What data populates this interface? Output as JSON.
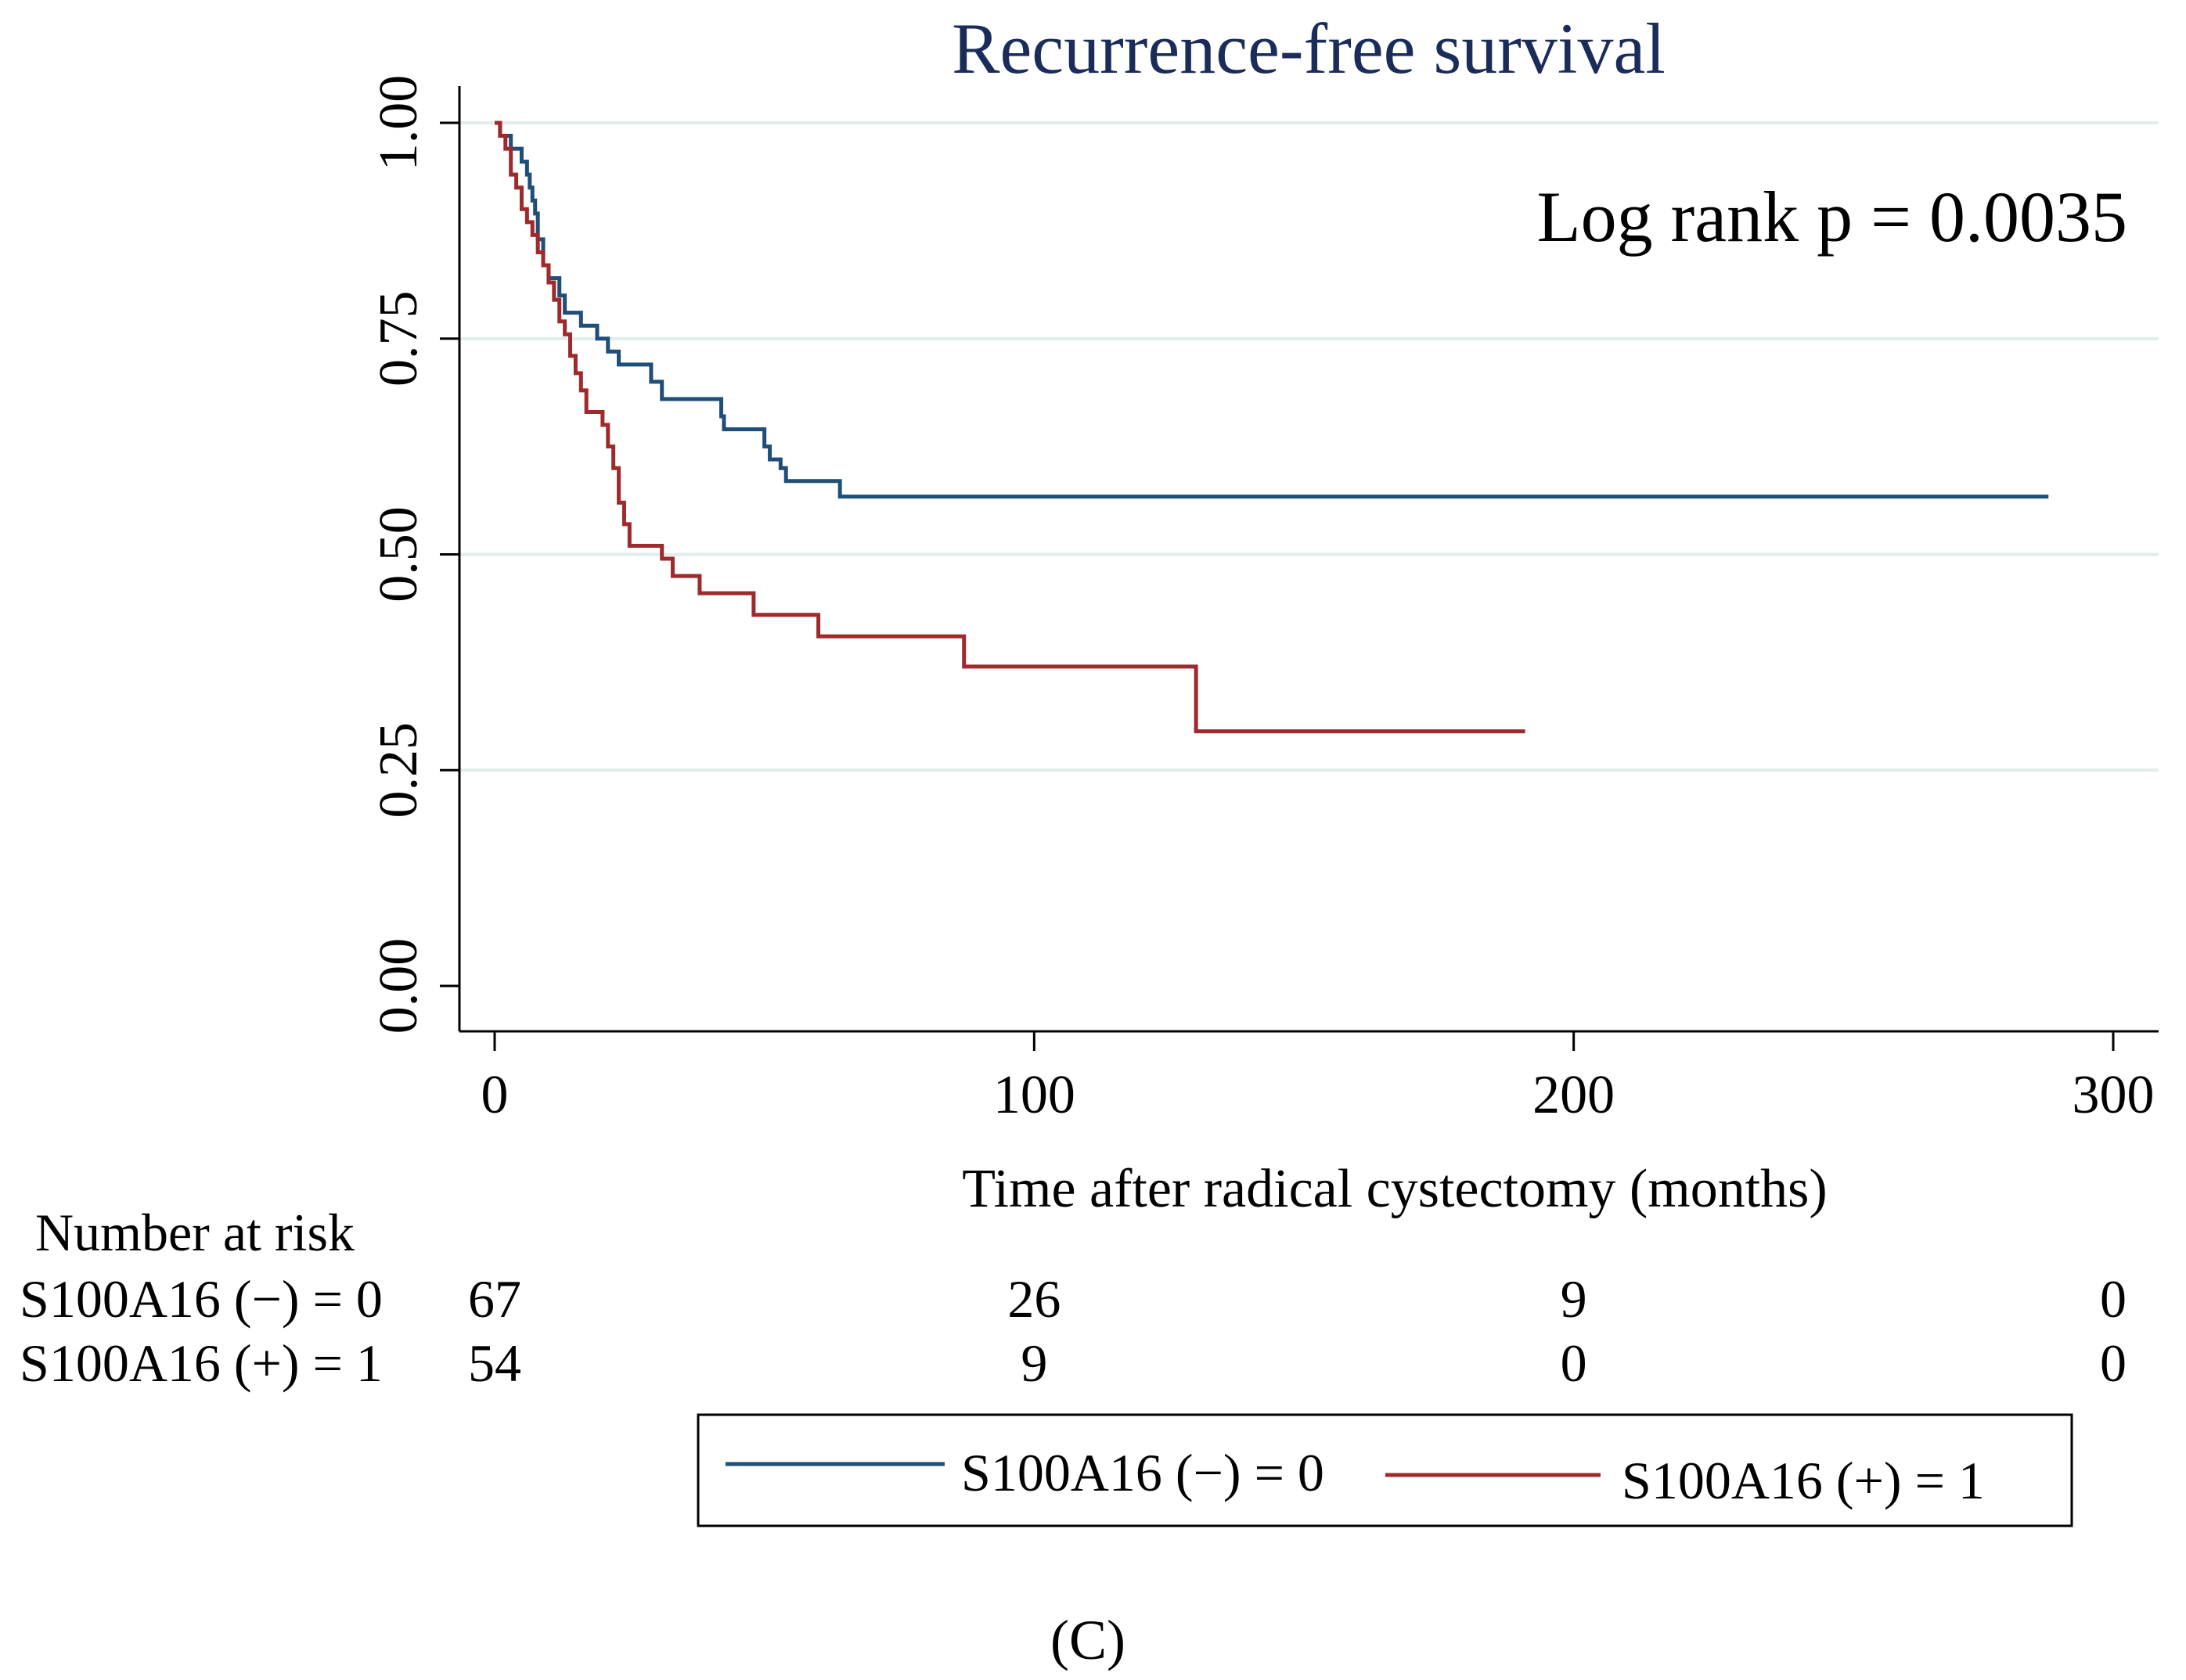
{
  "chart_data": {
    "type": "line",
    "step": true,
    "title": "Recurrence-free survival",
    "xlabel": "Time after radical cystectomy (months)",
    "ylabel": "",
    "xlim": [
      0,
      300
    ],
    "ylim": [
      0,
      1
    ],
    "xticks": [
      0,
      100,
      200,
      300
    ],
    "xtick_labels": [
      "0",
      "100",
      "200",
      "300"
    ],
    "yticks": [
      0,
      0.25,
      0.5,
      0.75,
      1.0
    ],
    "ytick_labels": [
      "0.00",
      "0.25",
      "0.50",
      "0.75",
      "1.00"
    ],
    "grid": true,
    "annotation": "Log rank p = 0.0035",
    "series": [
      {
        "name": "S100A16 (−) = 0",
        "color": "#1f4e79",
        "points": [
          [
            0,
            1.0
          ],
          [
            1,
            0.985
          ],
          [
            3,
            0.97
          ],
          [
            5,
            0.955
          ],
          [
            6,
            0.94
          ],
          [
            6.5,
            0.925
          ],
          [
            7,
            0.91
          ],
          [
            7.5,
            0.895
          ],
          [
            8,
            0.865
          ],
          [
            9,
            0.835
          ],
          [
            10,
            0.82
          ],
          [
            12,
            0.8
          ],
          [
            13,
            0.78
          ],
          [
            16,
            0.765
          ],
          [
            19,
            0.75
          ],
          [
            21,
            0.735
          ],
          [
            23,
            0.72
          ],
          [
            29,
            0.7
          ],
          [
            31,
            0.68
          ],
          [
            35,
            0.68
          ],
          [
            42,
            0.66
          ],
          [
            42.5,
            0.645
          ],
          [
            48,
            0.645
          ],
          [
            50,
            0.625
          ],
          [
            51,
            0.61
          ],
          [
            53,
            0.6
          ],
          [
            54,
            0.585
          ],
          [
            63,
            0.585
          ],
          [
            64,
            0.567
          ],
          [
            288,
            0.567
          ]
        ]
      },
      {
        "name": "S100A16 (+) = 1",
        "color": "#9e2a2b",
        "points": [
          [
            0,
            1.0
          ],
          [
            1,
            0.985
          ],
          [
            2,
            0.97
          ],
          [
            3,
            0.94
          ],
          [
            4,
            0.925
          ],
          [
            5,
            0.9
          ],
          [
            6,
            0.885
          ],
          [
            7,
            0.87
          ],
          [
            8,
            0.85
          ],
          [
            9,
            0.835
          ],
          [
            10,
            0.815
          ],
          [
            11,
            0.795
          ],
          [
            12,
            0.77
          ],
          [
            13,
            0.755
          ],
          [
            14,
            0.73
          ],
          [
            15,
            0.71
          ],
          [
            16,
            0.69
          ],
          [
            17,
            0.665
          ],
          [
            20,
            0.65
          ],
          [
            21,
            0.625
          ],
          [
            22,
            0.6
          ],
          [
            23,
            0.56
          ],
          [
            24,
            0.535
          ],
          [
            25,
            0.51
          ],
          [
            31,
            0.495
          ],
          [
            33,
            0.475
          ],
          [
            38,
            0.455
          ],
          [
            48,
            0.43
          ],
          [
            60,
            0.405
          ],
          [
            87,
            0.37
          ],
          [
            130,
            0.295
          ],
          [
            191,
            0.295
          ]
        ]
      }
    ],
    "number_at_risk": {
      "title": "Number at risk",
      "rows": [
        {
          "label": "S100A16 (−) = 0",
          "values": [
            "67",
            "26",
            "9",
            "0"
          ]
        },
        {
          "label": "S100A16 (+) = 1",
          "values": [
            "54",
            "9",
            "0",
            "0"
          ]
        }
      ]
    },
    "legend": {
      "placement": "bottom",
      "items": [
        "S100A16 (−) = 0",
        "S100A16 (+) = 1"
      ]
    },
    "panel_label": "(C)"
  }
}
